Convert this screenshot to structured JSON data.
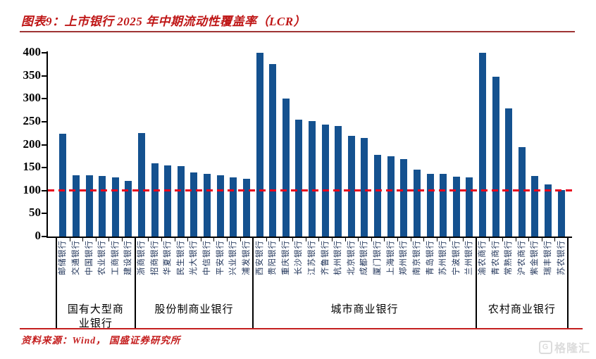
{
  "figure": {
    "title": "图表9：上市银行 2025 年中期流动性覆盖率（LCR）",
    "source": "资料来源：Wind， 国盛证券研究所",
    "watermark": "格隆汇",
    "watermark_icon": "G",
    "title_color": "#bf1616",
    "title_rule_color": "#9e3434",
    "footer_rule_color": "#c41e1e",
    "source_color": "#c41e1e"
  },
  "chart_data": {
    "type": "bar",
    "title": "上市银行2025年中期流动性覆盖率（LCR）",
    "xlabel": "",
    "ylabel": "",
    "ylim": [
      0,
      400
    ],
    "ytick_step": 50,
    "grid": false,
    "legend": false,
    "bar_color": "#14518f",
    "bank_label_color": "#1d3157",
    "axis_color": "#000000",
    "reference_line": {
      "value": 100,
      "color": "#e8001c",
      "style": "dashed"
    },
    "groups": [
      {
        "label": "国有大型商业银行",
        "banks": [
          {
            "name": "邮储银行",
            "value": 223
          },
          {
            "name": "交通银行",
            "value": 134
          },
          {
            "name": "中国银行",
            "value": 133
          },
          {
            "name": "农业银行",
            "value": 132
          },
          {
            "name": "工商银行",
            "value": 128
          },
          {
            "name": "建设银行",
            "value": 121
          }
        ]
      },
      {
        "label": "股份制商业银行",
        "banks": [
          {
            "name": "浙商银行",
            "value": 225
          },
          {
            "name": "招商银行",
            "value": 159
          },
          {
            "name": "华夏银行",
            "value": 155
          },
          {
            "name": "民生银行",
            "value": 154
          },
          {
            "name": "光大银行",
            "value": 140
          },
          {
            "name": "中信银行",
            "value": 137
          },
          {
            "name": "平安银行",
            "value": 133
          },
          {
            "name": "兴业银行",
            "value": 128
          },
          {
            "name": "浦发银行",
            "value": 126
          }
        ]
      },
      {
        "label": "城市商业银行",
        "banks": [
          {
            "name": "西安银行",
            "value": 400
          },
          {
            "name": "贵阳银行",
            "value": 376
          },
          {
            "name": "重庆银行",
            "value": 301
          },
          {
            "name": "长沙银行",
            "value": 255
          },
          {
            "name": "江苏银行",
            "value": 252
          },
          {
            "name": "齐鲁银行",
            "value": 244
          },
          {
            "name": "杭州银行",
            "value": 240
          },
          {
            "name": "北京银行",
            "value": 219
          },
          {
            "name": "成都银行",
            "value": 214
          },
          {
            "name": "厦门银行",
            "value": 178
          },
          {
            "name": "上海银行",
            "value": 174
          },
          {
            "name": "郑州银行",
            "value": 168
          },
          {
            "name": "南京银行",
            "value": 145
          },
          {
            "name": "青岛银行",
            "value": 137
          },
          {
            "name": "苏州银行",
            "value": 136
          },
          {
            "name": "宁波银行",
            "value": 130
          },
          {
            "name": "兰州银行",
            "value": 129
          }
        ]
      },
      {
        "label": "农村商业银行",
        "banks": [
          {
            "name": "渝农商行",
            "value": 400
          },
          {
            "name": "青农商行",
            "value": 348
          },
          {
            "name": "常熟银行",
            "value": 279
          },
          {
            "name": "沪农商行",
            "value": 194
          },
          {
            "name": "紫金银行",
            "value": 132
          },
          {
            "name": "瑞丰银行",
            "value": 113
          },
          {
            "name": "苏农银行",
            "value": 101
          }
        ]
      }
    ]
  }
}
